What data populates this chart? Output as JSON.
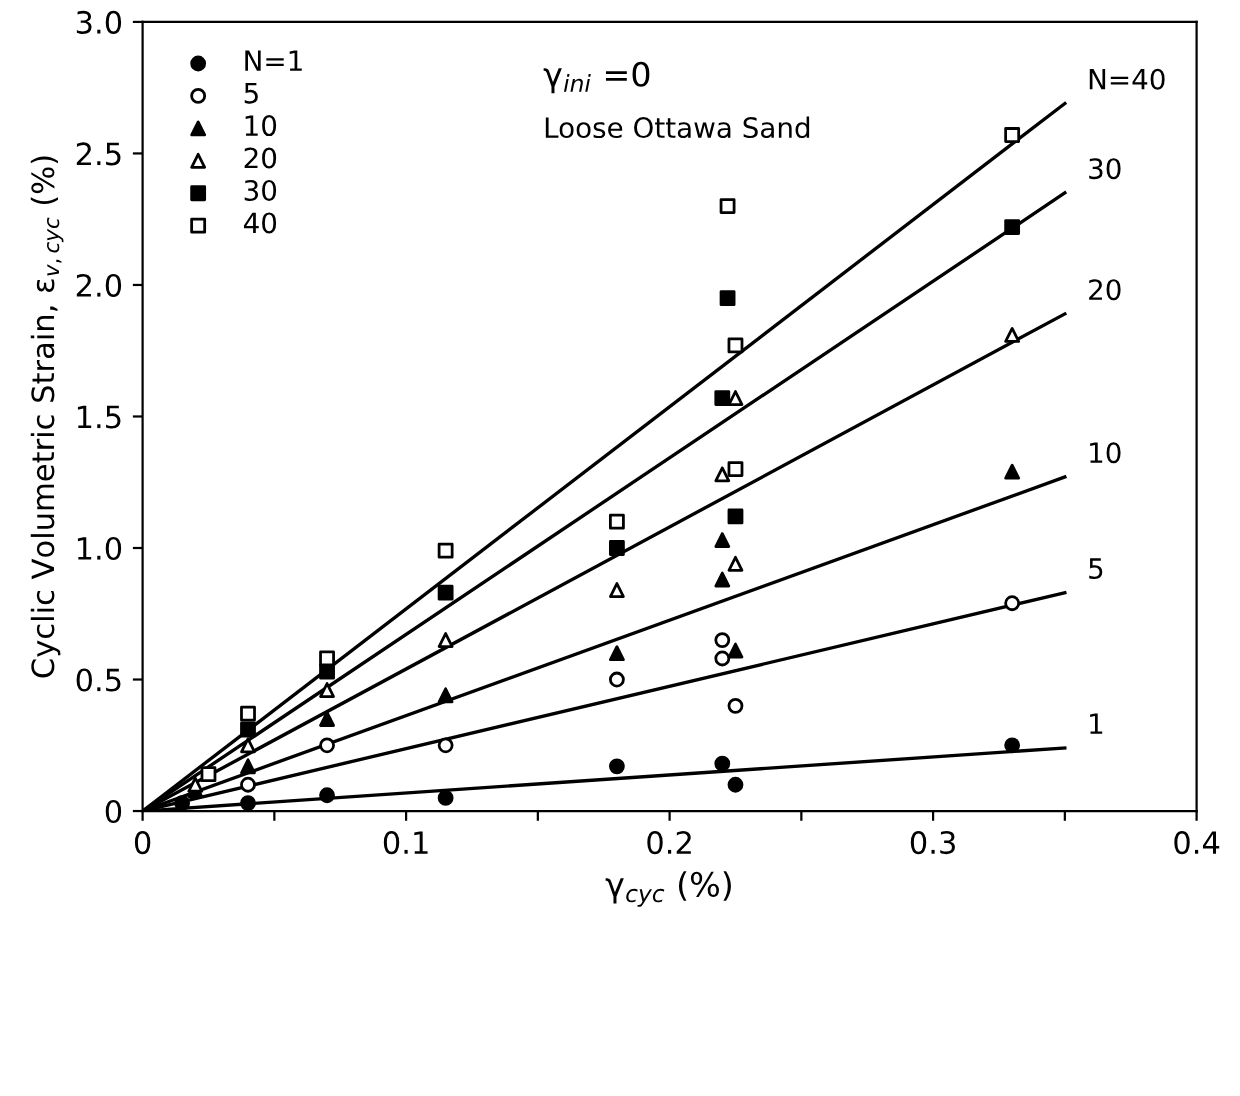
{
  "chart_data": {
    "type": "scatter",
    "xlabel": "γ$_{cyc}$ (%)",
    "ylabel": "Cyclic Volumetric Strain, ε$_{v,cyc}$ (%)",
    "xlim": [
      0,
      0.4
    ],
    "ylim": [
      0,
      3.0
    ],
    "xticks": [
      0,
      {
        "value": 0.05,
        "label": null
      },
      0.1,
      {
        "value": 0.15,
        "label": null
      },
      0.2,
      {
        "value": 0.25,
        "label": null
      },
      0.3,
      {
        "value": 0.35,
        "label": null
      },
      0.4
    ],
    "yticks": [
      0,
      0.5,
      {
        "value": 1,
        "label": "1.0"
      },
      1.5,
      {
        "value": 2,
        "label": "2.0"
      },
      2.5,
      {
        "value": 3,
        "label": "3.0"
      }
    ],
    "legend": "top left",
    "grid": false,
    "series": [
      {
        "name": "N=1",
        "color": "#000000",
        "marker": "circle",
        "x": [
          0.015,
          0.04,
          0.07,
          0.115,
          0.18,
          0.22,
          0.225,
          0.33
        ],
        "values": [
          0.03,
          0.03,
          0.06,
          0.05,
          0.17,
          0.18,
          0.1,
          0.25
        ]
      },
      {
        "name": "5",
        "color": "#ffffff",
        "marker": "circle",
        "x": [
          0.04,
          0.07,
          0.115,
          0.18,
          0.22,
          0.22,
          0.225,
          0.33
        ],
        "values": [
          0.1,
          0.25,
          0.25,
          0.5,
          0.65,
          0.58,
          0.4,
          0.79
        ]
      },
      {
        "name": "10",
        "color": "#000000",
        "marker": "triangle",
        "x": [
          0.02,
          0.04,
          0.07,
          0.115,
          0.18,
          0.22,
          0.22,
          0.225,
          0.33
        ],
        "values": [
          0.08,
          0.17,
          0.35,
          0.44,
          0.6,
          1.03,
          0.88,
          0.61,
          1.29
        ]
      },
      {
        "name": "20",
        "color": "#ffffff",
        "marker": "triangle",
        "x": [
          0.02,
          0.04,
          0.07,
          0.115,
          0.18,
          0.22,
          0.225,
          0.225,
          0.33
        ],
        "values": [
          0.1,
          0.25,
          0.46,
          0.65,
          0.84,
          1.28,
          1.57,
          0.94,
          1.81
        ]
      },
      {
        "name": "30",
        "color": "#000000",
        "marker": "square",
        "x": [
          0.04,
          0.07,
          0.115,
          0.18,
          0.22,
          0.222,
          0.225,
          0.33
        ],
        "values": [
          0.31,
          0.53,
          0.83,
          1.0,
          1.57,
          1.95,
          1.12,
          2.22
        ]
      },
      {
        "name": "40",
        "color": "#ffffff",
        "marker": "square",
        "x": [
          0.025,
          0.04,
          0.07,
          0.115,
          0.18,
          0.222,
          0.225,
          0.225,
          0.33
        ],
        "values": [
          0.14,
          0.37,
          0.58,
          0.99,
          1.1,
          2.3,
          1.77,
          1.3,
          2.57
        ]
      },
      {
        "type": "line",
        "name": "N=40",
        "color": "#000000",
        "x": [
          0,
          0.35
        ],
        "values": [
          0,
          2.69
        ]
      },
      {
        "type": "line",
        "name": "30",
        "color": "#000000",
        "x": [
          0,
          0.35
        ],
        "values": [
          0,
          2.35
        ]
      },
      {
        "type": "line",
        "name": "20",
        "color": "#000000",
        "x": [
          0,
          0.35
        ],
        "values": [
          0,
          1.89
        ]
      },
      {
        "type": "line",
        "name": "10",
        "color": "#000000",
        "x": [
          0,
          0.35
        ],
        "values": [
          0,
          1.27
        ]
      },
      {
        "type": "line",
        "name": "5",
        "color": "#000000",
        "x": [
          0,
          0.35
        ],
        "values": [
          0,
          0.83
        ]
      },
      {
        "type": "line",
        "name": "1",
        "color": "#000000",
        "x": [
          0,
          0.35
        ],
        "values": [
          0,
          0.24
        ]
      }
    ],
    "annotations": [
      "γ$_{ini}$ =0",
      "Loose Ottawa Sand"
    ]
  }
}
